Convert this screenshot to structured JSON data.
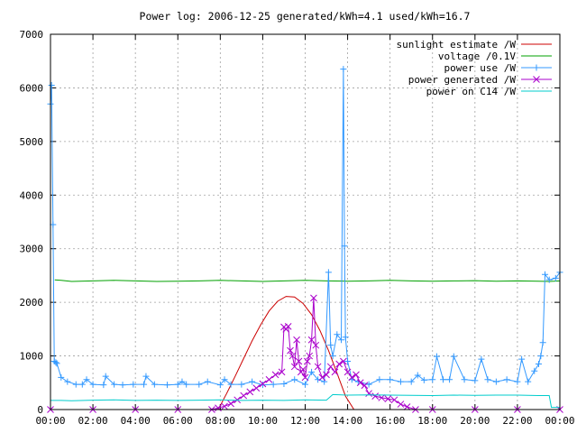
{
  "chart_data": {
    "type": "line",
    "title": "Power log: 2006-12-25 generated/kWh=4.1 used/kWh=16.7",
    "xlabel": "",
    "ylabel": "",
    "xlim": [
      0,
      24
    ],
    "ylim": [
      0,
      7000
    ],
    "x_ticks": [
      "00:00",
      "02:00",
      "04:00",
      "06:00",
      "08:00",
      "10:00",
      "12:00",
      "14:00",
      "16:00",
      "18:00",
      "20:00",
      "22:00",
      "00:00"
    ],
    "y_ticks": [
      0,
      1000,
      2000,
      3000,
      4000,
      5000,
      6000,
      7000
    ],
    "grid": true,
    "legend_position": "top-right",
    "series": [
      {
        "name": "sunlight estimate /W",
        "color": "#cc0000",
        "marker": "none",
        "x": [
          7.9,
          8.3,
          8.7,
          9.1,
          9.5,
          9.9,
          10.3,
          10.7,
          11.1,
          11.5,
          11.9,
          12.3,
          12.7,
          13.1,
          13.5,
          13.9,
          14.3
        ],
        "y": [
          0,
          300,
          620,
          950,
          1280,
          1580,
          1840,
          2020,
          2110,
          2100,
          1980,
          1770,
          1470,
          1100,
          680,
          250,
          0
        ]
      },
      {
        "name": "voltage /0.1V",
        "color": "#00a000",
        "marker": "none",
        "x": [
          0.2,
          0.5,
          1,
          2,
          3,
          4,
          5,
          6,
          7,
          8,
          9,
          10,
          11,
          12,
          13,
          14,
          15,
          16,
          17,
          18,
          19,
          20,
          21,
          22,
          23,
          23.5,
          24
        ],
        "y": [
          2420,
          2410,
          2390,
          2400,
          2410,
          2400,
          2390,
          2395,
          2400,
          2410,
          2400,
          2390,
          2400,
          2410,
          2400,
          2395,
          2400,
          2410,
          2400,
          2395,
          2400,
          2405,
          2395,
          2400,
          2395,
          2390,
          2400
        ]
      },
      {
        "name": "power use /W",
        "color": "#3399ff",
        "marker": "plus",
        "x": [
          0,
          0.05,
          0.12,
          0.18,
          0.25,
          0.3,
          0.5,
          0.8,
          1.2,
          1.5,
          1.7,
          2.0,
          2.5,
          2.6,
          3.0,
          3.4,
          3.9,
          4.4,
          4.5,
          4.9,
          5.5,
          6.0,
          6.2,
          6.4,
          7.0,
          7.4,
          8.0,
          8.2,
          8.5,
          9.0,
          9.5,
          10.0,
          10.5,
          11.0,
          11.5,
          12.0,
          12.3,
          12.6,
          12.9,
          13.1,
          13.2,
          13.3,
          13.5,
          13.7,
          13.8,
          13.85,
          13.9,
          14.0,
          14.2,
          14.5,
          15.0,
          15.5,
          16.0,
          16.5,
          17.0,
          17.3,
          17.6,
          18.0,
          18.2,
          18.5,
          18.8,
          19.0,
          19.5,
          20.0,
          20.3,
          20.6,
          21.0,
          21.5,
          22.0,
          22.2,
          22.5,
          22.8,
          23.0,
          23.1,
          23.2,
          23.3,
          23.5,
          23.8,
          24.0
        ],
        "y": [
          5700,
          6050,
          3450,
          900,
          880,
          860,
          600,
          520,
          470,
          470,
          560,
          470,
          460,
          620,
          470,
          460,
          470,
          470,
          620,
          470,
          460,
          470,
          520,
          470,
          470,
          520,
          460,
          560,
          470,
          470,
          520,
          460,
          470,
          480,
          560,
          470,
          700,
          560,
          520,
          2560,
          1200,
          1000,
          1400,
          1300,
          6350,
          3050,
          1350,
          900,
          560,
          520,
          470,
          560,
          560,
          520,
          520,
          640,
          550,
          560,
          990,
          560,
          560,
          990,
          560,
          540,
          940,
          560,
          520,
          560,
          520,
          940,
          520,
          720,
          850,
          1000,
          1250,
          2520,
          2420,
          2450,
          2560
        ]
      },
      {
        "name": "power generated /W",
        "color": "#aa00cc",
        "marker": "cross",
        "x": [
          0,
          2,
          4,
          6,
          7.6,
          7.9,
          8.2,
          8.5,
          8.8,
          9.1,
          9.4,
          9.7,
          10.0,
          10.3,
          10.6,
          10.9,
          11.0,
          11.1,
          11.2,
          11.3,
          11.4,
          11.5,
          11.6,
          11.7,
          11.8,
          11.9,
          12.0,
          12.1,
          12.2,
          12.3,
          12.4,
          12.5,
          12.6,
          12.8,
          13.0,
          13.2,
          13.4,
          13.6,
          13.8,
          14.0,
          14.2,
          14.4,
          14.6,
          14.8,
          15.0,
          15.3,
          15.6,
          15.9,
          16.2,
          16.5,
          16.8,
          17.2,
          18,
          20,
          22,
          24
        ],
        "y": [
          0,
          0,
          0,
          0,
          0,
          30,
          60,
          110,
          180,
          260,
          330,
          400,
          480,
          560,
          650,
          700,
          1540,
          1500,
          1550,
          1100,
          1000,
          800,
          1300,
          900,
          700,
          750,
          600,
          900,
          1000,
          1300,
          2080,
          1200,
          800,
          600,
          650,
          800,
          700,
          850,
          900,
          700,
          600,
          650,
          500,
          450,
          300,
          250,
          220,
          200,
          180,
          100,
          50,
          0,
          0,
          0,
          0,
          0
        ]
      },
      {
        "name": "power on C14 /W",
        "color": "#00cccc",
        "marker": "none",
        "x": [
          0,
          0.5,
          1,
          2,
          3,
          4,
          5,
          6,
          7,
          8,
          9,
          10,
          11,
          12,
          13,
          13.3,
          14,
          15,
          16,
          17,
          18,
          19,
          20,
          21,
          22,
          23,
          23.5,
          23.6,
          24
        ],
        "y": [
          170,
          170,
          165,
          175,
          180,
          170,
          175,
          170,
          175,
          180,
          170,
          175,
          170,
          180,
          175,
          280,
          270,
          275,
          270,
          265,
          260,
          270,
          265,
          270,
          270,
          260,
          260,
          40,
          40
        ]
      }
    ]
  }
}
